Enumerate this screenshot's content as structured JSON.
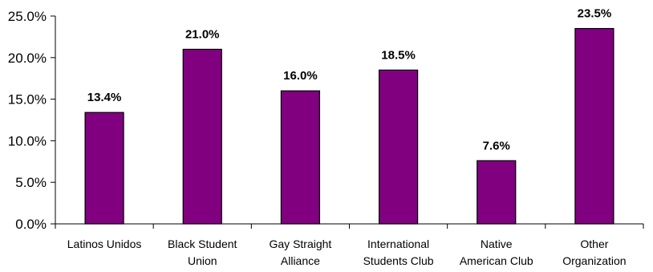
{
  "chart_data": {
    "type": "bar",
    "categories": [
      [
        "Latinos Unidos"
      ],
      [
        "Black Student",
        "Union"
      ],
      [
        "Gay Straight",
        "Alliance"
      ],
      [
        "International",
        "Students Club"
      ],
      [
        "Native",
        "American Club"
      ],
      [
        "Other",
        "Organization"
      ]
    ],
    "values": [
      13.4,
      21.0,
      16.0,
      18.5,
      7.6,
      23.5
    ],
    "data_labels": [
      "13.4%",
      "21.0%",
      "16.0%",
      "18.5%",
      "7.6%",
      "23.5%"
    ],
    "y_ticks": [
      0,
      5,
      10,
      15,
      20,
      25
    ],
    "y_tick_labels": [
      "0.0%",
      "5.0%",
      "10.0%",
      "15.0%",
      "20.0%",
      "25.0%"
    ],
    "ylim": [
      0,
      25
    ],
    "title": "",
    "xlabel": "",
    "ylabel": "",
    "grid": false,
    "legend": "none",
    "bar_color": "#800080"
  }
}
